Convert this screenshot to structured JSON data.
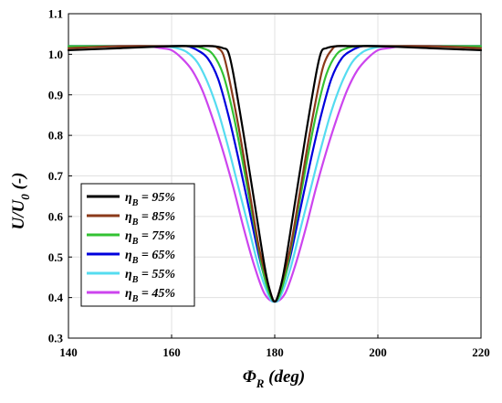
{
  "chart_data": {
    "type": "line",
    "xlabel": "Φ",
    "xlabel_sub": "R",
    "xlabel_unit": " (deg)",
    "ylabel": "U/U",
    "ylabel_sub": "0",
    "ylabel_unit": " (-)",
    "xlim": [
      140,
      220
    ],
    "ylim": [
      0.3,
      1.1
    ],
    "xticks": [
      140,
      160,
      180,
      200,
      220
    ],
    "yticks": [
      0.3,
      0.4,
      0.5,
      0.6,
      0.7,
      0.8,
      0.9,
      1.0,
      1.1
    ],
    "xtick_labels": [
      "140",
      "160",
      "180",
      "200",
      "220"
    ],
    "ytick_labels": [
      "0.3",
      "0.4",
      "0.5",
      "0.6",
      "0.7",
      "0.8",
      "0.9",
      "1.0",
      "1.1"
    ],
    "grid": true,
    "legend_position": "bottom-left",
    "series": [
      {
        "name": "η_B = 95%",
        "symbol": "η",
        "sub": "B",
        "value_text": " = 95%",
        "color": "#000000",
        "x": [
          140,
          150,
          160,
          165,
          168,
          170,
          171,
          172,
          174,
          176,
          178,
          179,
          180,
          181,
          182,
          184,
          186,
          188,
          189,
          190,
          192,
          195,
          200,
          210,
          220
        ],
        "y": [
          1.01,
          1.015,
          1.02,
          1.02,
          1.02,
          1.015,
          1.005,
          0.95,
          0.8,
          0.64,
          0.48,
          0.42,
          0.39,
          0.42,
          0.48,
          0.64,
          0.8,
          0.95,
          1.005,
          1.015,
          1.02,
          1.02,
          1.02,
          1.015,
          1.01
        ]
      },
      {
        "name": "η_B = 85%",
        "symbol": "η",
        "sub": "B",
        "value_text": " = 85%",
        "color": "#8b3a1a",
        "x": [
          140,
          150,
          160,
          165,
          168,
          169,
          170,
          171,
          173,
          175,
          177,
          179,
          180,
          181,
          183,
          185,
          187,
          189,
          190,
          191,
          192,
          195,
          200,
          210,
          220
        ],
        "y": [
          1.015,
          1.02,
          1.02,
          1.02,
          1.02,
          1.015,
          1.0,
          0.95,
          0.82,
          0.67,
          0.52,
          0.42,
          0.39,
          0.42,
          0.52,
          0.67,
          0.82,
          0.95,
          0.99,
          1.01,
          1.02,
          1.02,
          1.02,
          1.02,
          1.015
        ]
      },
      {
        "name": "η_B = 75%",
        "symbol": "η",
        "sub": "B",
        "value_text": " = 75%",
        "color": "#33c233",
        "x": [
          140,
          150,
          160,
          164,
          166,
          168,
          170,
          172,
          174,
          176,
          178,
          180,
          182,
          184,
          186,
          188,
          190,
          192,
          194,
          196,
          200,
          210,
          220
        ],
        "y": [
          1.02,
          1.02,
          1.02,
          1.02,
          1.015,
          1.0,
          0.95,
          0.85,
          0.72,
          0.58,
          0.45,
          0.39,
          0.45,
          0.58,
          0.72,
          0.85,
          0.95,
          1.0,
          1.015,
          1.02,
          1.02,
          1.02,
          1.02
        ]
      },
      {
        "name": "η_B = 65%",
        "symbol": "η",
        "sub": "B",
        "value_text": " = 65%",
        "color": "#0000dd",
        "x": [
          140,
          150,
          160,
          163,
          165,
          167,
          169,
          171,
          173,
          175,
          177,
          179,
          180,
          181,
          183,
          185,
          187,
          189,
          191,
          193,
          195,
          197,
          200,
          210,
          220
        ],
        "y": [
          1.02,
          1.02,
          1.02,
          1.02,
          1.01,
          0.99,
          0.94,
          0.85,
          0.74,
          0.62,
          0.5,
          0.41,
          0.39,
          0.41,
          0.5,
          0.62,
          0.74,
          0.85,
          0.94,
          0.99,
          1.01,
          1.02,
          1.02,
          1.02,
          1.02
        ]
      },
      {
        "name": "η_B = 55%",
        "symbol": "η",
        "sub": "B",
        "value_text": " = 55%",
        "color": "#55dcf0",
        "x": [
          140,
          150,
          158,
          161,
          163,
          165,
          167,
          169,
          171,
          173,
          175,
          177,
          179,
          180,
          181,
          183,
          185,
          187,
          189,
          191,
          193,
          195,
          197,
          199,
          202,
          210,
          220
        ],
        "y": [
          1.02,
          1.02,
          1.02,
          1.015,
          1.005,
          0.98,
          0.93,
          0.86,
          0.77,
          0.67,
          0.57,
          0.47,
          0.4,
          0.39,
          0.4,
          0.47,
          0.57,
          0.67,
          0.77,
          0.86,
          0.93,
          0.98,
          1.005,
          1.015,
          1.02,
          1.02,
          1.02
        ]
      },
      {
        "name": "η_B = 45%",
        "symbol": "η",
        "sub": "B",
        "value_text": " = 45%",
        "color": "#cc44ee",
        "x": [
          140,
          150,
          155,
          158,
          160,
          162,
          164,
          166,
          168,
          170,
          172,
          174,
          176,
          178,
          180,
          182,
          184,
          186,
          188,
          190,
          192,
          194,
          196,
          198,
          200,
          202,
          205,
          210,
          220
        ],
        "y": [
          1.02,
          1.02,
          1.02,
          1.015,
          1.01,
          0.99,
          0.96,
          0.91,
          0.84,
          0.76,
          0.67,
          0.57,
          0.48,
          0.41,
          0.39,
          0.41,
          0.48,
          0.57,
          0.67,
          0.76,
          0.84,
          0.91,
          0.96,
          0.99,
          1.01,
          1.015,
          1.02,
          1.02,
          1.02
        ]
      }
    ]
  },
  "colors": {
    "background": "#ffffff",
    "grid": "#e0e0e0",
    "axes": "#000000"
  }
}
